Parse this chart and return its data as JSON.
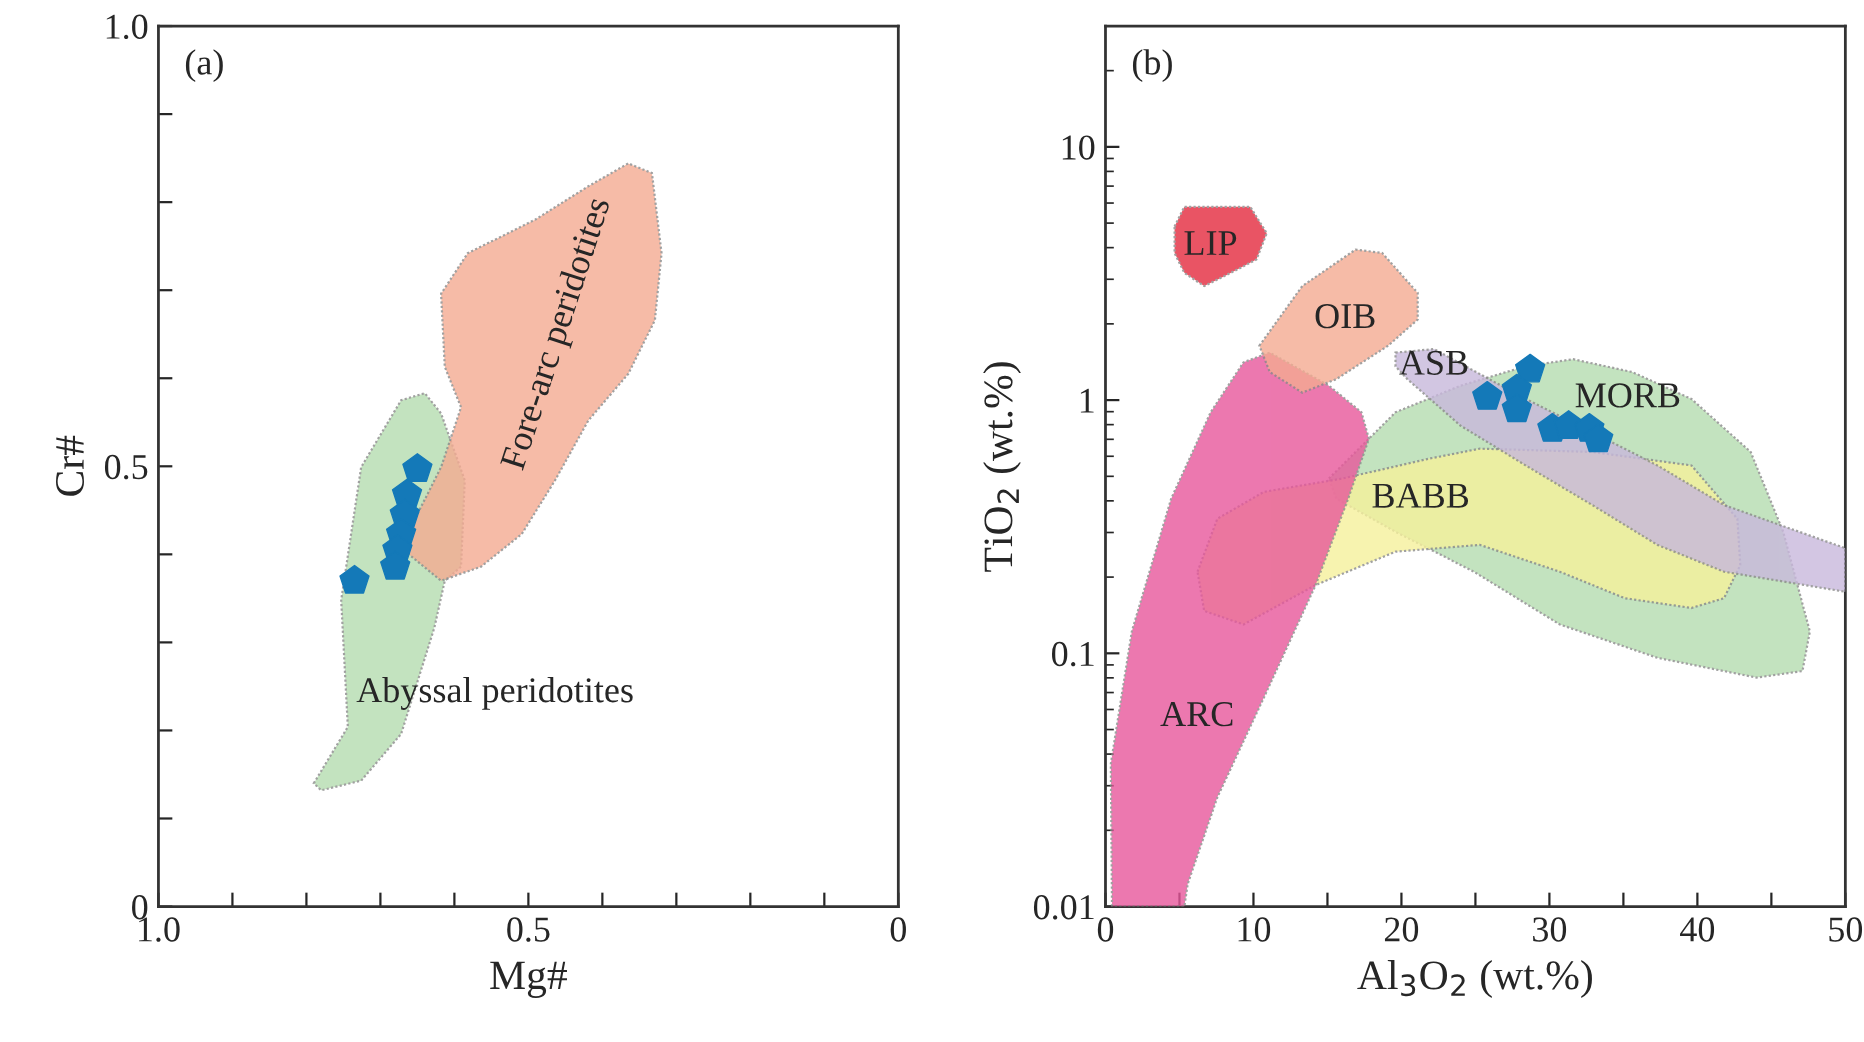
{
  "chart_data": [
    {
      "type": "scatter",
      "xlabel": "Mg#",
      "ylabel": "Cr#",
      "xlim": [
        1.0,
        0
      ],
      "ylim": [
        0,
        1.0
      ],
      "xticks": [
        {
          "value": 1.0,
          "label": "1.0"
        },
        {
          "value": 0.9,
          "label": null
        },
        {
          "value": 0.8,
          "label": null
        },
        {
          "value": 0.7,
          "label": null
        },
        {
          "value": 0.6,
          "label": null
        },
        {
          "value": 0.5,
          "label": "0.5"
        },
        {
          "value": 0.4,
          "label": null
        },
        {
          "value": 0.3,
          "label": null
        },
        {
          "value": 0.2,
          "label": null
        },
        {
          "value": 0.1,
          "label": null
        },
        0
      ],
      "yticks": [
        0,
        {
          "value": 0.1,
          "label": null
        },
        {
          "value": 0.2,
          "label": null
        },
        {
          "value": 0.3,
          "label": null
        },
        {
          "value": 0.4,
          "label": null
        },
        {
          "value": 0.5,
          "label": "0.5"
        },
        {
          "value": 0.6,
          "label": null
        },
        {
          "value": 0.7,
          "label": null
        },
        {
          "value": 0.8,
          "label": null
        },
        {
          "value": 0.9,
          "label": null
        },
        {
          "value": 1.0,
          "label": "1.0"
        }
      ],
      "grid": false,
      "series": [
        {
          "type": "area",
          "name": "Abyssal peridotites",
          "color": "#b5ddb0",
          "x": [
            0.79,
            0.744,
            0.753,
            0.726,
            0.672,
            0.64,
            0.618,
            0.586,
            0.591,
            0.613,
            0.627,
            0.672,
            0.726,
            0.78
          ],
          "values": [
            0.14,
            0.204,
            0.348,
            0.499,
            0.575,
            0.583,
            0.56,
            0.484,
            0.386,
            0.37,
            0.317,
            0.196,
            0.143,
            0.132
          ]
        },
        {
          "type": "area",
          "name": "Fore-arc peridotites",
          "color": "#f4ab92",
          "x": [
            0.663,
            0.618,
            0.564,
            0.509,
            0.464,
            0.419,
            0.365,
            0.329,
            0.32,
            0.333,
            0.365,
            0.419,
            0.491,
            0.582,
            0.618,
            0.613,
            0.591,
            0.618,
            0.654
          ],
          "values": [
            0.401,
            0.37,
            0.386,
            0.423,
            0.484,
            0.552,
            0.605,
            0.666,
            0.742,
            0.833,
            0.844,
            0.818,
            0.78,
            0.742,
            0.696,
            0.613,
            0.567,
            0.499,
            0.439
          ]
        },
        {
          "color": "#1479b8",
          "x": [
            0.735,
            0.65,
            0.664,
            0.667,
            0.672,
            0.677,
            0.68
          ],
          "values": [
            0.37,
            0.497,
            0.468,
            0.445,
            0.423,
            0.405,
            0.386
          ]
        }
      ],
      "annotations": [
        "(a)"
      ]
    },
    {
      "type": "scatter",
      "xlabel": "Al$_{3}$O$_{2}$ (wt.%)",
      "ylabel": "TiO$_{2}$ (wt.%)",
      "log": "y",
      "xlim": [
        0,
        50
      ],
      "ylim": [
        0.01,
        30
      ],
      "xticks": [
        0,
        {
          "value": 5,
          "label": null
        },
        10,
        {
          "value": 15,
          "label": null
        },
        20,
        {
          "value": 25,
          "label": null
        },
        30,
        {
          "value": 35,
          "label": null
        },
        40,
        {
          "value": 45,
          "label": null
        },
        50
      ],
      "yticks": [
        0.01,
        0.1,
        1,
        10
      ],
      "grid": false,
      "series": [
        {
          "type": "area",
          "name": "MORB",
          "color": "#b5ddb0",
          "x": [
            15.1,
            19.6,
            24.0,
            28.4,
            31.6,
            35.6,
            39.6,
            43.6,
            45.8,
            47.6,
            47.1,
            44.0,
            37.3,
            30.7,
            24.9,
            19.6,
            15.6
          ],
          "values": [
            0.49,
            0.895,
            1.14,
            1.36,
            1.45,
            1.29,
            1.01,
            0.624,
            0.302,
            0.122,
            0.0851,
            0.0802,
            0.096,
            0.13,
            0.21,
            0.302,
            0.408
          ]
        },
        {
          "type": "area",
          "name": "BABB",
          "color": "#f6f19c",
          "x": [
            6.22,
            7.56,
            10.7,
            16.0,
            21.8,
            25.3,
            32.9,
            39.6,
            42.7,
            42.9,
            41.8,
            39.6,
            35.1,
            30.7,
            25.3,
            19.6,
            14.2,
            9.33,
            6.67
          ],
          "values": [
            0.21,
            0.34,
            0.434,
            0.49,
            0.586,
            0.643,
            0.624,
            0.552,
            0.34,
            0.223,
            0.165,
            0.151,
            0.165,
            0.21,
            0.268,
            0.252,
            0.186,
            0.13,
            0.147
          ]
        },
        {
          "type": "area",
          "name": "ASB",
          "color": "#c8b8dc",
          "x": [
            19.6,
            22.2,
            28.4,
            32.9,
            37.3,
            41.8,
            50,
            50,
            41.8,
            37.3,
            32.9,
            28.4,
            24.0,
            20.4,
            19.6
          ],
          "values": [
            1.54,
            1.59,
            1.01,
            0.746,
            0.552,
            0.385,
            0.26,
            0.175,
            0.21,
            0.268,
            0.385,
            0.552,
            0.792,
            1.21,
            1.36
          ]
        },
        {
          "type": "area",
          "name": "ARC",
          "color": "#e8579b",
          "x": [
            0.44,
            0.36,
            1.78,
            4.44,
            7.11,
            9.33,
            11.1,
            15.1,
            17.3,
            17.8,
            16.4,
            14.2,
            10.7,
            7.56,
            5.56,
            5.33
          ],
          "values": [
            0.01,
            0.0366,
            0.122,
            0.408,
            0.895,
            1.41,
            1.54,
            1.14,
            0.895,
            0.703,
            0.408,
            0.186,
            0.0668,
            0.027,
            0.0123,
            0.01
          ]
        },
        {
          "type": "area",
          "name": "OIB",
          "color": "#f4ab92",
          "x": [
            10.4,
            13.3,
            16.9,
            18.7,
            21.1,
            21.1,
            19.1,
            15.6,
            13.3,
            11.1
          ],
          "values": [
            1.64,
            2.82,
            3.93,
            3.81,
            2.65,
            2.08,
            1.64,
            1.21,
            1.07,
            1.29
          ]
        },
        {
          "type": "area",
          "name": "LIP",
          "color": "#e42a3e",
          "x": [
            4.67,
            5.33,
            9.78,
            10.9,
            10.2,
            8.0,
            6.67,
            5.33,
            4.67
          ],
          "values": [
            4.85,
            5.8,
            5.8,
            4.56,
            3.59,
            3.08,
            2.82,
            3.18,
            3.81
          ]
        },
        {
          "color": "#1479b8",
          "x": [
            25.8,
            28.7,
            27.8,
            27.8,
            30.2,
            31.3,
            32.7,
            33.3
          ],
          "values": [
            1.03,
            1.32,
            1.1,
            0.92,
            0.77,
            0.79,
            0.77,
            0.7
          ]
        }
      ],
      "annotations": [
        "(b)"
      ]
    }
  ]
}
